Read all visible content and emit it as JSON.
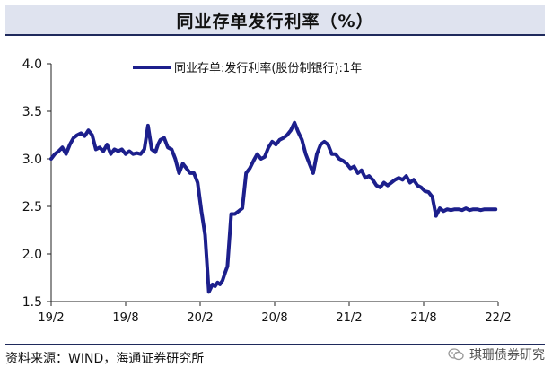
{
  "header": {
    "title": "同业存单发行利率（%）"
  },
  "footer": {
    "source": "资料来源：WIND，海通证券研究所",
    "watermark": "琪珊债券研究"
  },
  "colors": {
    "series": "#1c1f8c",
    "title_bg": "#dfe3ef",
    "rule": "#1f2a5c"
  },
  "icons": {
    "watermark_icon": "wechat-icon"
  },
  "chart_data": {
    "type": "line",
    "title": "",
    "xlabel": "",
    "ylabel": "",
    "ylim": [
      1.5,
      4.0
    ],
    "yticks": [
      "1.5",
      "2.0",
      "2.5",
      "3.0",
      "3.5",
      "4.0"
    ],
    "xlim": [
      0,
      36
    ],
    "xticks": [
      {
        "label": "19/2",
        "x": 0
      },
      {
        "label": "19/8",
        "x": 6
      },
      {
        "label": "20/2",
        "x": 12
      },
      {
        "label": "20/8",
        "x": 18
      },
      {
        "label": "21/2",
        "x": 24
      },
      {
        "label": "21/8",
        "x": 30
      },
      {
        "label": "22/2",
        "x": 36
      }
    ],
    "grid": false,
    "legend_position": "top",
    "series": [
      {
        "name": "同业存单:发行利率(股份制银行):1年",
        "x": [
          0,
          0.3,
          0.6,
          0.9,
          1.2,
          1.5,
          1.8,
          2.1,
          2.4,
          2.7,
          3.0,
          3.3,
          3.6,
          3.9,
          4.2,
          4.5,
          4.8,
          5.1,
          5.4,
          5.7,
          6.0,
          6.3,
          6.6,
          6.9,
          7.2,
          7.5,
          7.8,
          8.1,
          8.4,
          8.6,
          8.8,
          9.1,
          9.4,
          9.7,
          10.0,
          10.3,
          10.6,
          10.9,
          11.2,
          11.5,
          11.8,
          12.1,
          12.4,
          12.7,
          13.0,
          13.2,
          13.4,
          13.6,
          13.8,
          14.0,
          14.2,
          14.5,
          14.8,
          15.1,
          15.4,
          15.7,
          16.0,
          16.3,
          16.6,
          16.9,
          17.2,
          17.5,
          17.8,
          18.1,
          18.4,
          18.7,
          19.0,
          19.3,
          19.6,
          19.9,
          20.2,
          20.5,
          20.8,
          21.1,
          21.4,
          21.7,
          22.0,
          22.3,
          22.6,
          22.9,
          23.2,
          23.5,
          23.8,
          24.1,
          24.4,
          24.7,
          25.0,
          25.3,
          25.6,
          25.9,
          26.2,
          26.5,
          26.8,
          27.1,
          27.4,
          27.7,
          28.0,
          28.3,
          28.6,
          28.9,
          29.2,
          29.5,
          29.8,
          30.1,
          30.4,
          30.7,
          31.0,
          31.3,
          31.6,
          31.9,
          32.2,
          32.5,
          32.8,
          33.1,
          33.4,
          33.7,
          34.0,
          34.3,
          34.6,
          34.9,
          35.2,
          35.5,
          35.8
        ],
        "values": [
          3.0,
          3.05,
          3.08,
          3.12,
          3.05,
          3.15,
          3.22,
          3.25,
          3.27,
          3.24,
          3.3,
          3.25,
          3.1,
          3.12,
          3.08,
          3.15,
          3.05,
          3.1,
          3.08,
          3.1,
          3.05,
          3.08,
          3.05,
          3.06,
          3.05,
          3.1,
          3.35,
          3.1,
          3.07,
          3.15,
          3.2,
          3.22,
          3.12,
          3.1,
          3.0,
          2.85,
          2.95,
          2.9,
          2.85,
          2.85,
          2.75,
          2.45,
          2.2,
          1.6,
          1.68,
          1.66,
          1.7,
          1.68,
          1.72,
          1.8,
          1.87,
          2.42,
          2.42,
          2.45,
          2.48,
          2.85,
          2.9,
          2.98,
          3.05,
          3.0,
          3.02,
          3.12,
          3.18,
          3.15,
          3.2,
          3.22,
          3.25,
          3.3,
          3.38,
          3.28,
          3.2,
          3.05,
          2.95,
          2.85,
          3.05,
          3.15,
          3.18,
          3.15,
          3.05,
          3.05,
          3.0,
          2.98,
          2.95,
          2.9,
          2.92,
          2.85,
          2.88,
          2.8,
          2.82,
          2.78,
          2.72,
          2.7,
          2.75,
          2.72,
          2.75,
          2.78,
          2.8,
          2.78,
          2.82,
          2.75,
          2.78,
          2.72,
          2.7,
          2.66,
          2.65,
          2.6,
          2.4,
          2.48,
          2.45,
          2.47,
          2.46,
          2.47,
          2.47,
          2.46,
          2.48,
          2.46,
          2.47,
          2.47,
          2.46,
          2.47,
          2.47,
          2.47,
          2.47
        ]
      }
    ]
  }
}
